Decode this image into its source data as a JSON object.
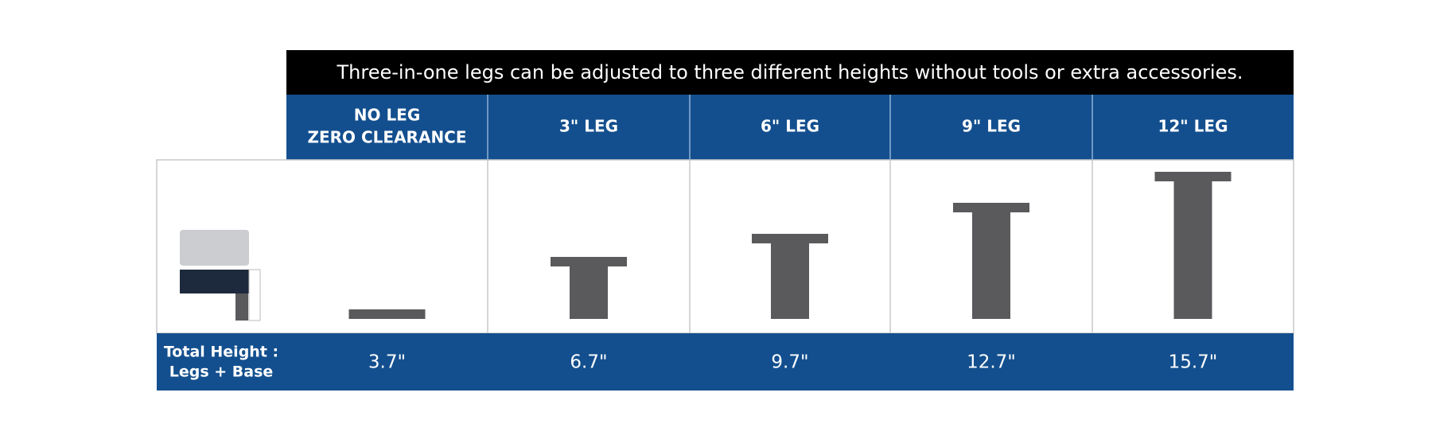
{
  "title": "Three-in-one legs can be adjusted to three different heights without tools or extra accessories.",
  "table": {
    "headers": [
      [
        "NO LEG",
        "ZERO CLEARANCE"
      ],
      [
        "3\" LEG"
      ],
      [
        "6\" LEG"
      ],
      [
        "9\" LEG"
      ],
      [
        "12\" LEG"
      ]
    ],
    "row_label": [
      "Total Height :",
      "Legs + Base"
    ],
    "values": [
      "3.7\"",
      "6.7\"",
      "9.7\"",
      "12.7\"",
      "15.7\""
    ]
  }
}
